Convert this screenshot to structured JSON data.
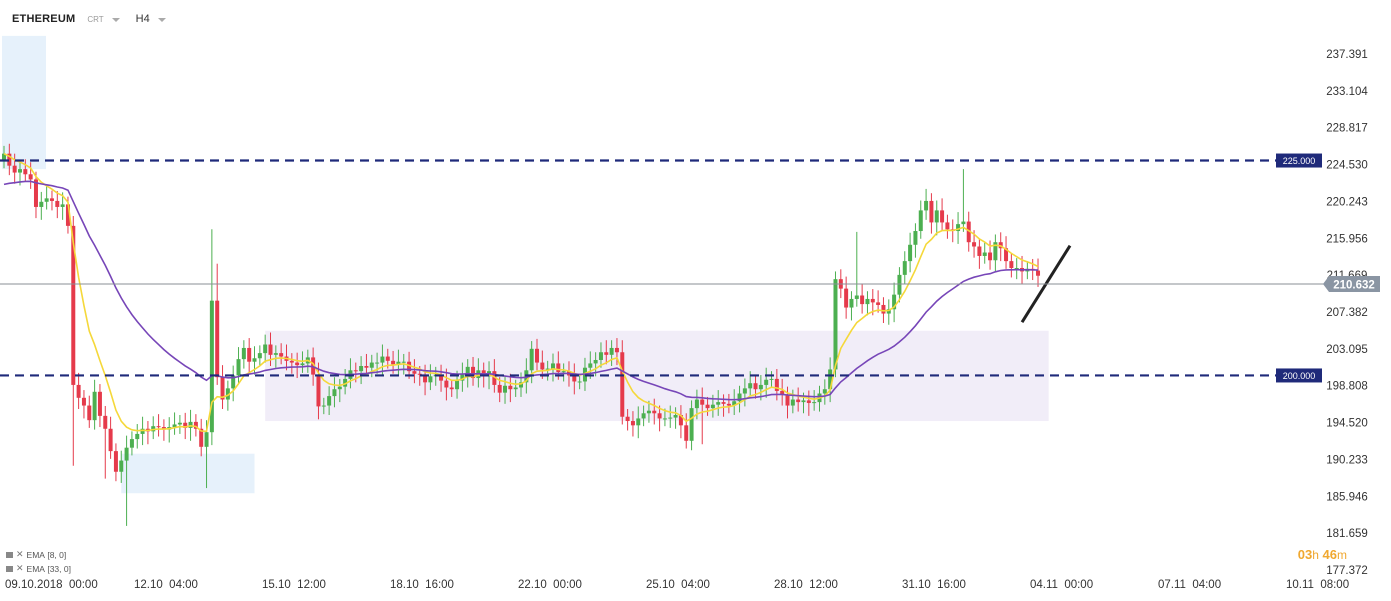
{
  "header": {
    "symbol": "ETHEREUM",
    "chart_type": "CRT",
    "timeframe": "H4"
  },
  "indicators": [
    {
      "label": "EMA",
      "params": "[8, 0]",
      "color": "#f5d83a"
    },
    {
      "label": "EMA",
      "params": "[33, 0]",
      "color": "#7746b8"
    }
  ],
  "timer": {
    "hours": "03",
    "h_unit": "h",
    "minutes": "46",
    "m_unit": "m"
  },
  "colors": {
    "up": "#4caf50",
    "down": "#e53a4b",
    "ema_fast": "#f5d83a",
    "ema_slow": "#7746b8",
    "level_line": "#1f2a7a",
    "zone_blue": "#e6f1fb",
    "zone_purple": "#f1edf8",
    "price_badge": "#8a95a3",
    "timer": "#f0a830"
  },
  "chart_data": {
    "type": "candlestick",
    "title": "ETHEREUM",
    "timeframe": "H4",
    "y_ticks": [
      237.391,
      233.104,
      228.817,
      224.53,
      220.243,
      215.956,
      211.669,
      207.382,
      203.095,
      198.808,
      194.52,
      190.233,
      185.946,
      181.659,
      177.372
    ],
    "ylim": [
      177.372,
      239.5
    ],
    "x_ticks": [
      "09.10.2018  00:00",
      "12.10  04:00",
      "15.10  12:00",
      "18.10  16:00",
      "22.10  00:00",
      "25.10  04:00",
      "28.10  12:00",
      "31.10  16:00",
      "04.11  00:00",
      "07.11  04:00",
      "10.11  08:00"
    ],
    "levels": [
      {
        "value": 225.0,
        "label": "225.000"
      },
      {
        "value": 200.0,
        "label": "200.000"
      }
    ],
    "current_price": {
      "value": 210.632,
      "label": "210.632"
    },
    "closes": [
      225.8,
      224.4,
      223.6,
      224.0,
      223.4,
      222.8,
      219.6,
      220.2,
      220.6,
      220.3,
      219.6,
      219.9,
      217.4,
      198.9,
      197.4,
      196.5,
      194.8,
      198.1,
      195.3,
      193.8,
      191.2,
      188.8,
      190.1,
      191.6,
      192.6,
      193.2,
      193.8,
      193.5,
      194.1,
      194.0,
      193.7,
      194.0,
      194.3,
      194.5,
      193.9,
      194.6,
      193.8,
      191.7,
      193.4,
      208.7,
      199.8,
      197.2,
      198.5,
      200.0,
      201.9,
      203.2,
      201.6,
      202.0,
      202.6,
      203.6,
      202.4,
      202.6,
      202.2,
      201.7,
      201.5,
      201.2,
      201.4,
      202.1,
      200.1,
      196.4,
      196.5,
      197.6,
      198.4,
      198.7,
      199.6,
      200.6,
      200.5,
      201.1,
      200.9,
      201.5,
      201.5,
      202.2,
      201.7,
      201.3,
      201.6,
      201.6,
      200.5,
      200.2,
      200.1,
      199.2,
      199.9,
      200.1,
      199.4,
      198.6,
      198.4,
      199.4,
      200.1,
      201.0,
      199.7,
      200.6,
      199.9,
      200.5,
      198.9,
      198.0,
      198.8,
      198.4,
      198.6,
      199.2,
      200.6,
      203.1,
      201.5,
      200.7,
      200.8,
      201.4,
      200.4,
      200.5,
      200.0,
      199.3,
      199.3,
      200.9,
      201.4,
      201.8,
      202.7,
      202.4,
      203.2,
      202.7,
      195.2,
      194.7,
      194.2,
      195.0,
      195.6,
      195.9,
      195.6,
      195.0,
      195.0,
      195.1,
      195.4,
      194.2,
      192.4,
      196.2,
      197.2,
      196.6,
      196.2,
      196.6,
      196.9,
      196.7,
      196.5,
      197.0,
      197.9,
      198.5,
      199.1,
      198.4,
      198.9,
      199.5,
      199.6,
      198.2,
      197.8,
      196.5,
      197.2,
      196.9,
      197.1,
      196.8,
      196.9,
      197.9,
      198.4,
      200.7,
      211.2,
      210.1,
      207.9,
      208.9,
      209.3,
      208.3,
      208.9,
      208.5,
      208.2,
      207.2,
      207.7,
      209.4,
      211.7,
      213.3,
      215.2,
      216.8,
      219.2,
      220.3,
      217.8,
      219.2,
      217.8,
      217.0,
      216.8,
      217.6,
      217.9,
      215.5,
      215.0,
      213.9,
      214.3,
      213.4,
      215.5,
      214.8,
      213.3,
      212.5,
      212.5,
      212.1,
      212.4,
      212.2,
      211.6
    ]
  }
}
